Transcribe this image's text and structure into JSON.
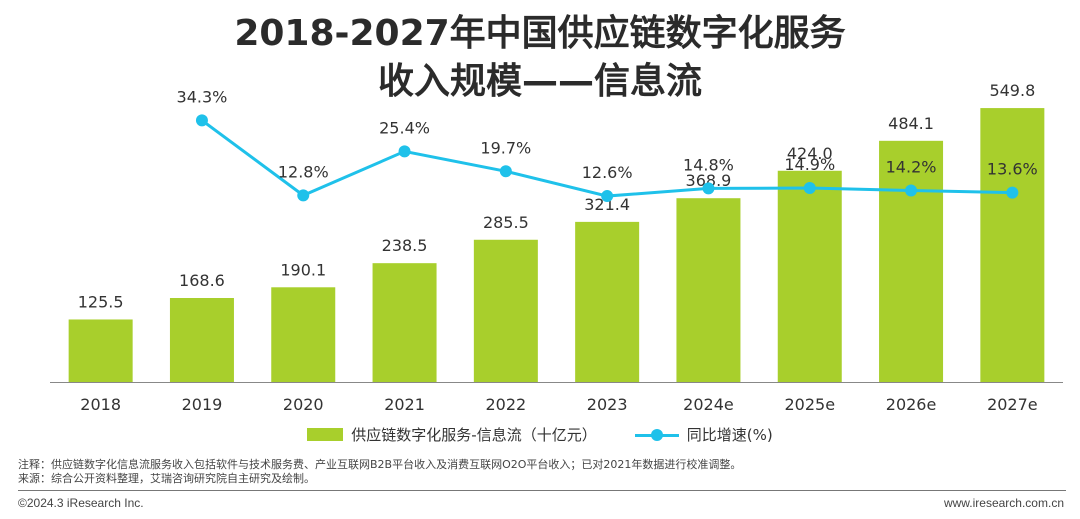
{
  "title": {
    "line1": "2018-2027年中国供应链数字化服务",
    "line2": "收入规模——信息流"
  },
  "colors": {
    "bar": "#a8cf2c",
    "line": "#1fc1ea",
    "axis": "#888888",
    "text": "#333333"
  },
  "chart_data": {
    "type": "bar",
    "categories": [
      "2018",
      "2019",
      "2020",
      "2021",
      "2022",
      "2023",
      "2024e",
      "2025e",
      "2026e",
      "2027e"
    ],
    "series": [
      {
        "name": "供应链数字化服务-信息流（十亿元）",
        "type": "bar",
        "values": [
          125.5,
          168.6,
          190.1,
          238.5,
          285.5,
          321.4,
          368.9,
          424.0,
          484.1,
          549.8
        ],
        "labels": [
          "125.5",
          "168.6",
          "190.1",
          "238.5",
          "285.5",
          "321.4",
          "368.9",
          "424.0",
          "484.1",
          "549.8"
        ]
      },
      {
        "name": "同比增速(%)",
        "type": "line",
        "values": [
          null,
          34.3,
          12.8,
          25.4,
          19.7,
          12.6,
          14.8,
          14.9,
          14.2,
          13.6
        ],
        "labels": [
          "",
          "34.3%",
          "12.8%",
          "25.4%",
          "19.7%",
          "12.6%",
          "14.8%",
          "14.9%",
          "14.2%",
          "13.6%"
        ]
      }
    ],
    "ylim": [
      0,
      560
    ],
    "y2lim": [
      0,
      40
    ],
    "grid": false,
    "legend_position": "bottom"
  },
  "legend": {
    "bar_label": "供应链数字化服务-信息流（十亿元）",
    "line_label": "同比增速(%)"
  },
  "notes": {
    "note": "注释：供应链数字化信息流服务收入包括软件与技术服务费、产业互联网B2B平台收入及消费互联网O2O平台收入；已对2021年数据进行校准调整。",
    "source": "来源：综合公开资料整理，艾瑞咨询研究院自主研究及绘制。"
  },
  "footer": {
    "copyright": "©2024.3 iResearch Inc.",
    "website": "www.iresearch.com.cn"
  }
}
